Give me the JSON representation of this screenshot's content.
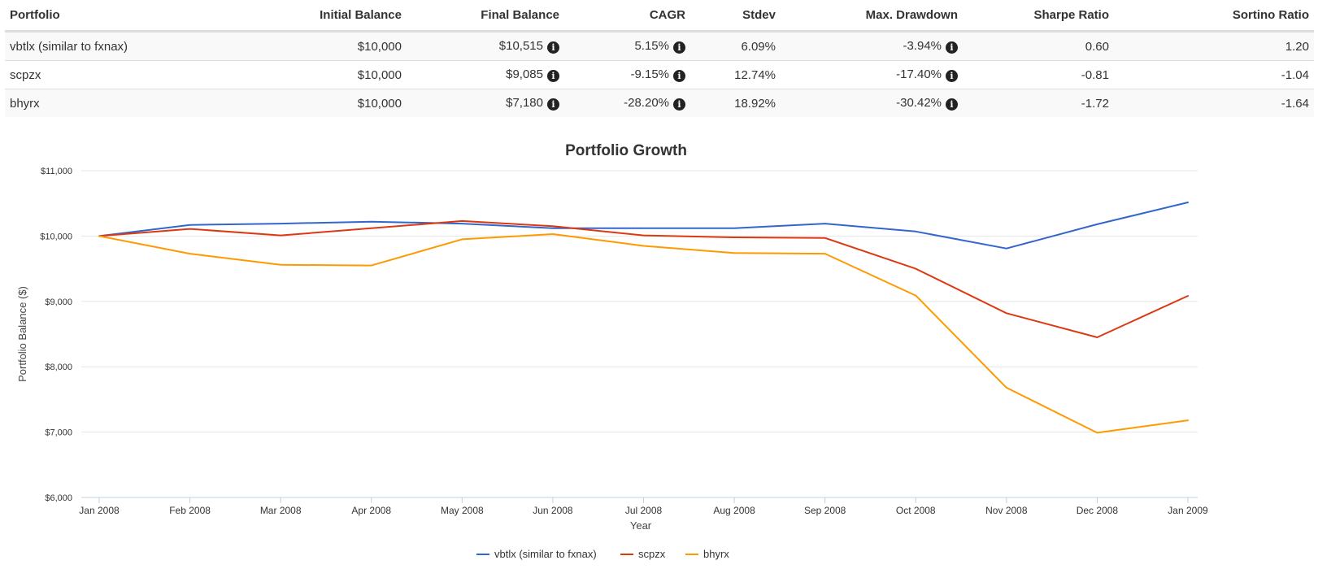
{
  "table": {
    "headers": {
      "portfolio": "Portfolio",
      "initial_balance": "Initial Balance",
      "final_balance": "Final Balance",
      "cagr": "CAGR",
      "stdev": "Stdev",
      "max_drawdown": "Max. Drawdown",
      "sharpe": "Sharpe Ratio",
      "sortino": "Sortino Ratio"
    },
    "rows": [
      {
        "portfolio": "vbtlx (similar to fxnax)",
        "initial_balance": "$10,000",
        "final_balance": "$10,515",
        "cagr": "5.15%",
        "stdev": "6.09%",
        "max_drawdown": "-3.94%",
        "sharpe": "0.60",
        "sortino": "1.20"
      },
      {
        "portfolio": "scpzx",
        "initial_balance": "$10,000",
        "final_balance": "$9,085",
        "cagr": "-9.15%",
        "stdev": "12.74%",
        "max_drawdown": "-17.40%",
        "sharpe": "-0.81",
        "sortino": "-1.04"
      },
      {
        "portfolio": "bhyrx",
        "initial_balance": "$10,000",
        "final_balance": "$7,180",
        "cagr": "-28.20%",
        "stdev": "18.92%",
        "max_drawdown": "-30.42%",
        "sharpe": "-1.72",
        "sortino": "-1.64"
      }
    ],
    "info_glyph": "i"
  },
  "chart_data": {
    "type": "line",
    "title": "Portfolio Growth",
    "xlabel": "Year",
    "ylabel": "Portfolio Balance ($)",
    "ylim": [
      6000,
      11000
    ],
    "yticks": [
      6000,
      7000,
      8000,
      9000,
      10000,
      11000
    ],
    "ytick_labels": [
      "$6,000",
      "$7,000",
      "$8,000",
      "$9,000",
      "$10,000",
      "$11,000"
    ],
    "categories": [
      "Jan 2008",
      "Feb 2008",
      "Mar 2008",
      "Apr 2008",
      "May 2008",
      "Jun 2008",
      "Jul 2008",
      "Aug 2008",
      "Sep 2008",
      "Oct 2008",
      "Nov 2008",
      "Dec 2008",
      "Jan 2009"
    ],
    "grid": true,
    "legend_position": "bottom-center",
    "series": [
      {
        "name": "vbtlx (similar to fxnax)",
        "color": "#3366cc",
        "values": [
          10000,
          10170,
          10190,
          10220,
          10190,
          10120,
          10120,
          10120,
          10190,
          10070,
          9810,
          10180,
          10515
        ]
      },
      {
        "name": "scpzx",
        "color": "#dc3912",
        "values": [
          10000,
          10110,
          10010,
          10120,
          10230,
          10150,
          10010,
          9980,
          9970,
          9500,
          8820,
          8450,
          9085
        ]
      },
      {
        "name": "bhyrx",
        "color": "#ff9900",
        "values": [
          10000,
          9730,
          9560,
          9550,
          9950,
          10030,
          9850,
          9740,
          9730,
          9090,
          7680,
          6990,
          7180
        ]
      }
    ]
  }
}
